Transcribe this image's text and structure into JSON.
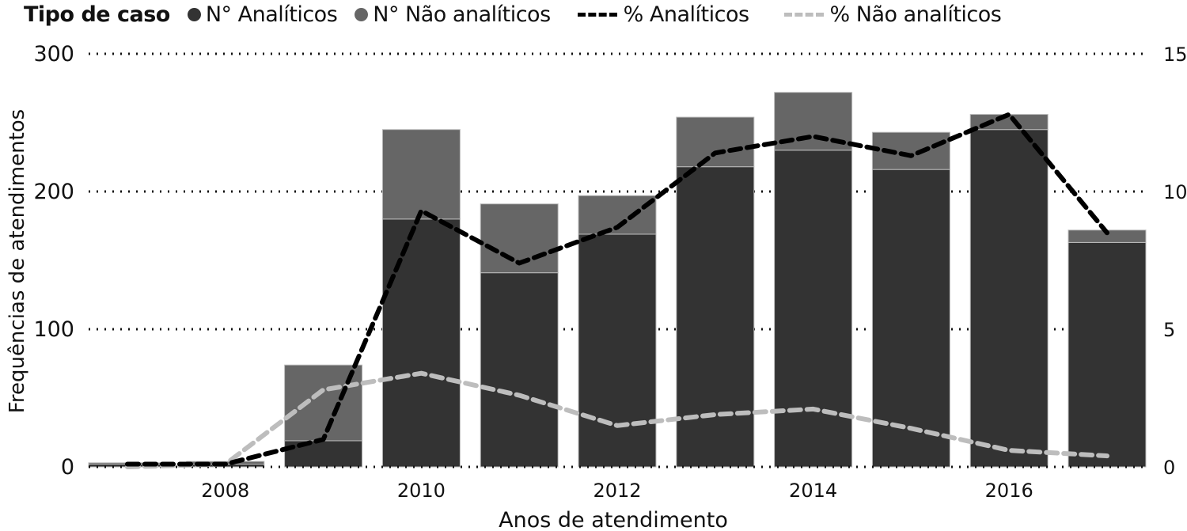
{
  "legend": {
    "title": "Tipo de caso",
    "items": [
      {
        "label": "N° Analíticos",
        "kind": "dot",
        "color": "#333333"
      },
      {
        "label": "N° Não analíticos",
        "kind": "dot",
        "color": "#666666"
      },
      {
        "label": "% Analíticos",
        "kind": "dash",
        "color": "#000000"
      },
      {
        "label": "% Não analíticos",
        "kind": "dash",
        "color": "#bdbdbd"
      }
    ]
  },
  "chart_data": {
    "type": "bar",
    "subtype": "stacked-bar-with-dual-axis-lines",
    "title": "",
    "xlabel": "Anos de atendimento",
    "ylabel": "Frequências de atendimentos",
    "y2label": "",
    "categories": [
      "2007",
      "2008",
      "2009",
      "2010",
      "2011",
      "2012",
      "2013",
      "2014",
      "2015",
      "2016",
      "2017"
    ],
    "x_tick_labels": [
      "2008",
      "2010",
      "2012",
      "2014",
      "2016"
    ],
    "ylim": [
      0,
      300
    ],
    "y_ticks": [
      0,
      100,
      200,
      300
    ],
    "y2lim": [
      0,
      15
    ],
    "y2_ticks": [
      0,
      5,
      10,
      15
    ],
    "grid": "horizontal dotted",
    "legend_position": "top",
    "series": [
      {
        "name": "N° Analíticos",
        "type": "bar",
        "axis": "left",
        "color": "#333333",
        "values": [
          2,
          2,
          19,
          180,
          141,
          169,
          218,
          230,
          216,
          245,
          163
        ]
      },
      {
        "name": "N° Não analíticos",
        "type": "bar",
        "axis": "left",
        "color": "#666666",
        "values": [
          1,
          2,
          55,
          65,
          50,
          28,
          36,
          42,
          27,
          11,
          9
        ]
      },
      {
        "name": "% Analíticos",
        "type": "line",
        "axis": "right",
        "color": "#000000",
        "dashed": true,
        "values": [
          0.1,
          0.1,
          1.0,
          9.3,
          7.4,
          8.7,
          11.4,
          12.0,
          11.3,
          12.8,
          8.5
        ]
      },
      {
        "name": "% Não analíticos",
        "type": "line",
        "axis": "right",
        "color": "#bdbdbd",
        "dashed": true,
        "values": [
          0.0,
          0.1,
          2.8,
          3.4,
          2.6,
          1.5,
          1.9,
          2.1,
          1.4,
          0.6,
          0.4
        ]
      }
    ]
  }
}
